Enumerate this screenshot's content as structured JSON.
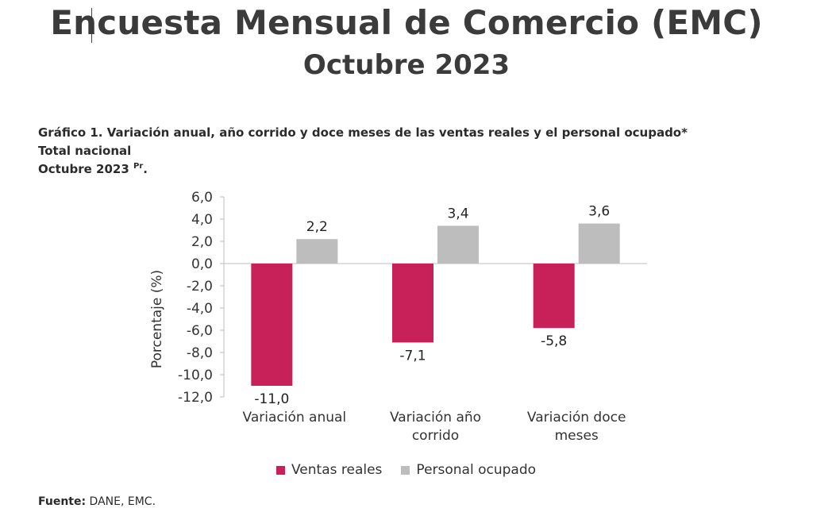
{
  "header": {
    "title": "Encuesta Mensual de Comercio (EMC)",
    "subtitle": "Octubre 2023"
  },
  "caption": {
    "line1": "Gráfico 1. Variación anual, año corrido y doce meses de las ventas reales y el personal ocupado*",
    "line2": "Total nacional",
    "line3": "Octubre 2023",
    "line3_sup": "Pr",
    "line3_end": "."
  },
  "source": {
    "label": "Fuente:",
    "text": " DANE, EMC."
  },
  "chart_data": {
    "type": "bar",
    "categories": [
      [
        "Variación anual"
      ],
      [
        "Variación año",
        "corrido"
      ],
      [
        "Variación doce",
        "meses"
      ]
    ],
    "series": [
      {
        "name": "Ventas reales",
        "color": "#c8215a",
        "values": [
          -11.0,
          -7.1,
          -5.8
        ],
        "labels": [
          "-11,0",
          "-7,1",
          "-5,8"
        ]
      },
      {
        "name": "Personal ocupado",
        "color": "#bdbdbd",
        "values": [
          2.2,
          3.4,
          3.6
        ],
        "labels": [
          "2,2",
          "3,4",
          "3,6"
        ]
      }
    ],
    "ylabel": "Porcentaje (%)",
    "ylim": [
      -12,
      6
    ],
    "yticks": [
      6,
      4,
      2,
      0,
      -2,
      -4,
      -6,
      -8,
      -10,
      -12
    ],
    "ytick_labels": [
      "6,0",
      "4,0",
      "2,0",
      "0,0",
      "-2,0",
      "-4,0",
      "-6,0",
      "-8,0",
      "-10,0",
      "-12,0"
    ],
    "grid": false,
    "legend": "bottom"
  }
}
